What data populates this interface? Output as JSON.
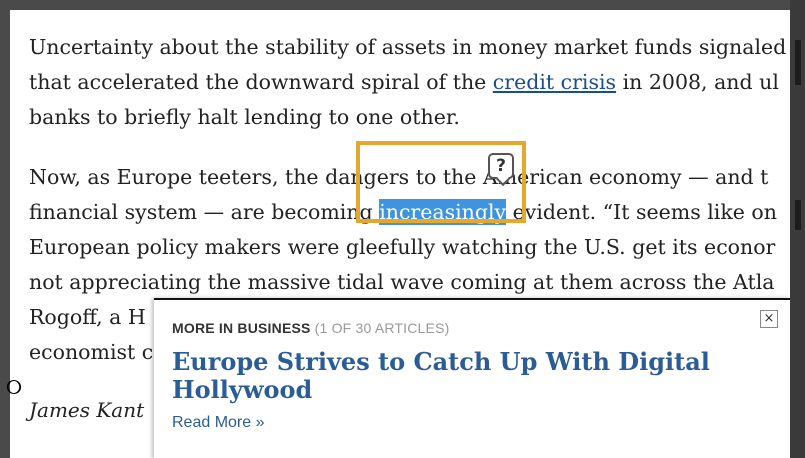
{
  "article": {
    "p1": {
      "line1": "Uncertainty about the stability of assets in money market funds signaled",
      "line2_pre": "that accelerated the downward spiral of the ",
      "line2_link": "credit crisis",
      "line2_post": " in 2008, and ul",
      "line3": "banks to briefly halt lending to one other."
    },
    "p2": {
      "line1": "Now, as Europe teeters, the dangers to the American economy — and t",
      "line2_pre": "financial system — are becoming ",
      "line2_highlight": "increasingly",
      "line2_post": " evident. “It seems like on",
      "line3": "European policy makers were gleefully watching the U.S. get its econor",
      "line4": "not appreciating the massive tidal wave coming at them across the Atla",
      "line5": "Rogoff, a H",
      "line6": "economist c"
    },
    "byline": "James Kant"
  },
  "lookup": {
    "icon": "question-mark-icon",
    "glyph": "?"
  },
  "popup": {
    "section_label": "MORE IN BUSINESS",
    "count": "(1 OF 30 ARTICLES)",
    "close_glyph": "×",
    "headline": "Europe Strives to Catch Up With Digital Hollywood",
    "read_more": "Read More »"
  },
  "cursor": {
    "glyph": "୦"
  },
  "colors": {
    "link": "#1a4d8f",
    "highlight": "#3f94df",
    "lookup_border": "#e3a82c",
    "headline": "#2b5c96"
  }
}
